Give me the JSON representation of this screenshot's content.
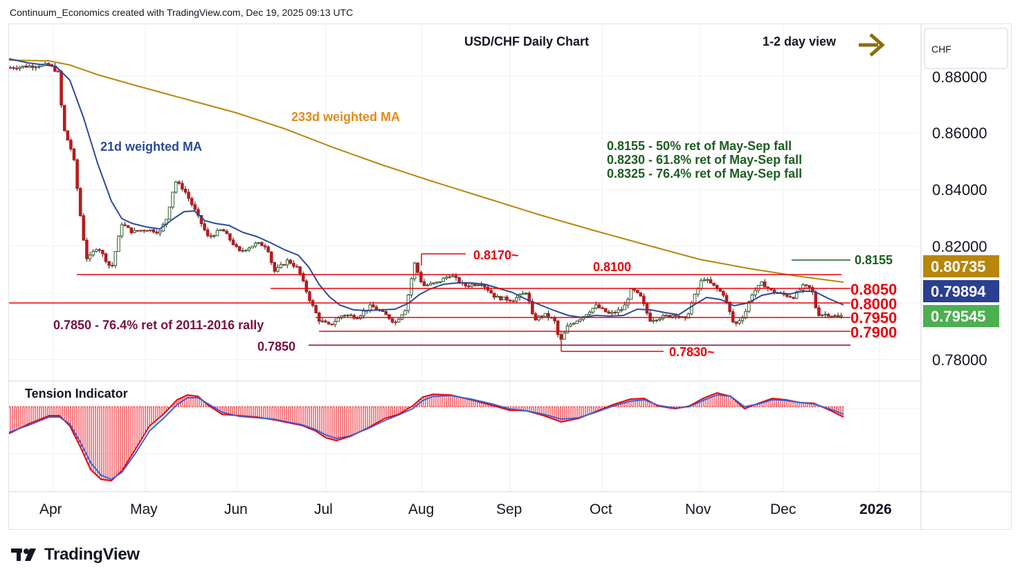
{
  "header": {
    "credit": "Continuum_Economics created with TradingView.com, Dec 19, 2025 09:13 UTC"
  },
  "chart": {
    "title": "USD/CHF Daily Chart",
    "view_label": "1-2 day view",
    "currency": "CHF",
    "annotations": {
      "ma233": "233d weighted MA",
      "ma21": "21d weighted MA",
      "ret_lines": [
        "0.8155 - 50% ret of May-Sep fall",
        "0.8230 - 61.8% ret of May-Sep fall",
        "0.8325 - 76.4% ret of May-Sep fall"
      ],
      "ret_2011": "0.7850 - 76.4% ret of 2011-2016 rally",
      "label_8170": "0.8170~",
      "label_8100": "0.8100",
      "label_7850": "0.7850",
      "label_7830": "0.7830~",
      "label_8155": "0.8155"
    },
    "levels": {
      "l8050": "0.8050",
      "l8000": "0.8000",
      "l7950": "0.7950",
      "l7900": "0.7900"
    },
    "axis_ticks": [
      "0.88000",
      "0.86000",
      "0.84000",
      "0.82000",
      "0.78000"
    ],
    "badges": {
      "ma233": "0.80735",
      "ma21": "0.79894",
      "price": "0.79545"
    },
    "months": [
      "Apr",
      "May",
      "Jun",
      "Jul",
      "Aug",
      "Sep",
      "Oct",
      "Nov",
      "Dec",
      "2026"
    ],
    "indicator_label": "Tension Indicator",
    "colors": {
      "up": "#2e5e2e",
      "down": "#b71c1c",
      "ma233": "#b8860b",
      "ma21": "#2a4a9a",
      "level": "#e8000b",
      "ret2011": "#7a1040",
      "green_text": "#1b5e20",
      "badge233": "#b8860b",
      "badge21": "#2a3f8f",
      "badge_price": "#4caf50"
    }
  },
  "chart_data": {
    "type": "candlestick",
    "series": [
      {
        "name": "233d weighted MA",
        "x": [
          "Apr",
          "May",
          "Jun",
          "Jul",
          "Aug",
          "Sep",
          "Oct",
          "Nov",
          "Dec"
        ],
        "values": [
          0.885,
          0.872,
          0.859,
          0.845,
          0.836,
          0.827,
          0.819,
          0.812,
          0.8074
        ]
      },
      {
        "name": "21d weighted MA",
        "x": [
          "Apr",
          "May",
          "Jun",
          "Jul",
          "Aug",
          "Sep",
          "Oct",
          "Nov",
          "Dec"
        ],
        "values": [
          0.882,
          0.826,
          0.821,
          0.796,
          0.805,
          0.801,
          0.799,
          0.804,
          0.7989
        ]
      }
    ],
    "close_approx": {
      "x": [
        "Apr",
        "May",
        "Jun",
        "Jul",
        "Aug",
        "Sep",
        "Oct",
        "Nov",
        "Dec"
      ],
      "values": [
        0.88,
        0.825,
        0.82,
        0.794,
        0.808,
        0.793,
        0.798,
        0.806,
        0.7955
      ]
    },
    "last_price": 0.79545,
    "ylim": [
      0.7735,
      0.89
    ],
    "levels": [
      0.817,
      0.8155,
      0.81,
      0.805,
      0.8,
      0.795,
      0.79,
      0.785,
      0.783
    ],
    "title": "USD/CHF Daily Chart",
    "yticks": [
      0.88,
      0.86,
      0.84,
      0.82,
      0.78
    ],
    "xticks": [
      "Apr",
      "May",
      "Jun",
      "Jul",
      "Aug",
      "Sep",
      "Oct",
      "Nov",
      "Dec",
      "2026"
    ],
    "grid": true
  }
}
